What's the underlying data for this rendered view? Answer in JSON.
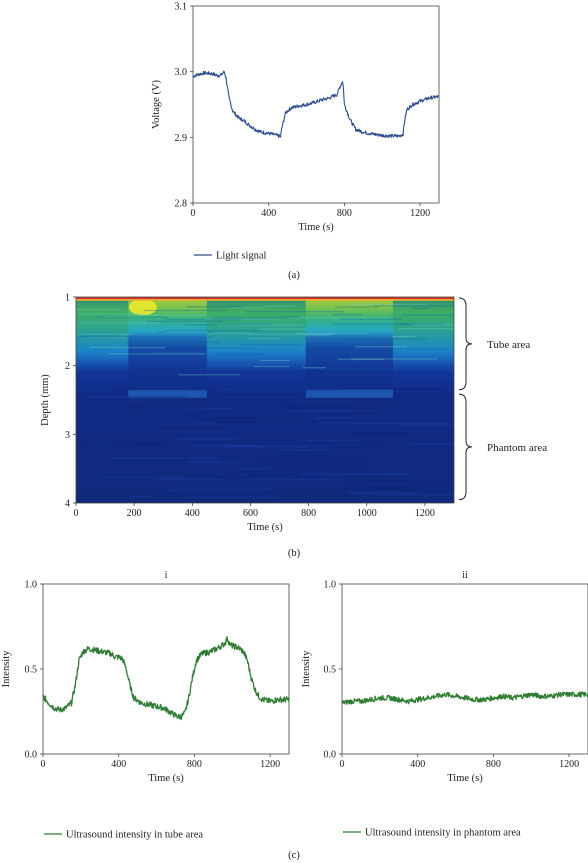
{
  "panels": {
    "a": "(a)",
    "b": "(b)",
    "c": "(c)"
  },
  "chart_data": [
    {
      "id": "a",
      "type": "line",
      "xlabel": "Time (s)",
      "ylabel": "Voltage (V)",
      "xlim": [
        0,
        1300
      ],
      "ylim": [
        2.8,
        3.1
      ],
      "xticks": [
        "0",
        "400",
        "800",
        "1200"
      ],
      "yticks": [
        "2.8",
        "2.9",
        "3.0",
        "3.1"
      ],
      "color": "#2b4d8f",
      "legend": "bottom-left",
      "series": [
        {
          "name": "Light signal",
          "x": [
            0,
            30,
            60,
            100,
            130,
            150,
            165,
            175,
            190,
            210,
            240,
            270,
            300,
            330,
            360,
            400,
            430,
            455,
            462,
            470,
            490,
            520,
            560,
            600,
            640,
            680,
            720,
            760,
            790,
            795,
            800,
            830,
            860,
            900,
            950,
            1000,
            1050,
            1090,
            1110,
            1118,
            1130,
            1160,
            1200,
            1250,
            1300
          ],
          "y": [
            2.993,
            2.996,
            2.998,
            2.997,
            2.994,
            2.995,
            3.0,
            2.99,
            2.96,
            2.94,
            2.93,
            2.925,
            2.918,
            2.912,
            2.908,
            2.906,
            2.904,
            2.902,
            2.9,
            2.915,
            2.938,
            2.945,
            2.948,
            2.95,
            2.953,
            2.957,
            2.96,
            2.965,
            2.986,
            2.975,
            2.95,
            2.927,
            2.912,
            2.908,
            2.905,
            2.903,
            2.902,
            2.902,
            2.905,
            2.925,
            2.942,
            2.95,
            2.955,
            2.96,
            2.962
          ]
        }
      ]
    },
    {
      "id": "b",
      "type": "heatmap",
      "xlabel": "Time (s)",
      "ylabel": "Depth (mm)",
      "xlim": [
        0,
        1300
      ],
      "ylim": [
        1,
        4
      ],
      "xticks": [
        "0",
        "200",
        "400",
        "600",
        "800",
        "1000",
        "1200"
      ],
      "yticks": [
        "1",
        "2",
        "3",
        "4"
      ],
      "regions": [
        {
          "label": "Tube area",
          "depth_range": [
            1.0,
            2.35
          ]
        },
        {
          "label": "Phantom area",
          "depth_range": [
            2.4,
            3.95
          ]
        }
      ]
    },
    {
      "id": "c-i",
      "type": "line",
      "title": "i",
      "xlabel": "Time (s)",
      "ylabel": "Intensity",
      "xlim": [
        0,
        1300
      ],
      "ylim": [
        0.0,
        1.0
      ],
      "xticks": [
        "0",
        "400",
        "800",
        "1200"
      ],
      "yticks": [
        "0.0",
        "0.5",
        "1.0"
      ],
      "color": "#2e7d32",
      "legend": "bottom-left",
      "series": [
        {
          "name": "Ultrasound intensity in tube area",
          "x": [
            0,
            30,
            60,
            90,
            120,
            150,
            170,
            190,
            210,
            240,
            280,
            320,
            360,
            380,
            400,
            420,
            440,
            460,
            480,
            520,
            560,
            600,
            640,
            680,
            710,
            730,
            750,
            770,
            790,
            810,
            840,
            880,
            920,
            960,
            975,
            990,
            1020,
            1040,
            1060,
            1080,
            1100,
            1120,
            1140,
            1160,
            1200,
            1240,
            1300
          ],
          "y": [
            0.34,
            0.3,
            0.27,
            0.26,
            0.27,
            0.3,
            0.4,
            0.55,
            0.6,
            0.62,
            0.61,
            0.6,
            0.59,
            0.57,
            0.57,
            0.56,
            0.5,
            0.4,
            0.33,
            0.3,
            0.29,
            0.28,
            0.27,
            0.24,
            0.22,
            0.22,
            0.24,
            0.33,
            0.45,
            0.55,
            0.59,
            0.6,
            0.62,
            0.65,
            0.68,
            0.64,
            0.63,
            0.62,
            0.6,
            0.55,
            0.45,
            0.38,
            0.34,
            0.32,
            0.31,
            0.32,
            0.32
          ]
        }
      ]
    },
    {
      "id": "c-ii",
      "type": "line",
      "title": "ii",
      "xlabel": "Time (s)",
      "ylabel": "Intensity",
      "xlim": [
        0,
        1300
      ],
      "ylim": [
        0.0,
        1.0
      ],
      "xticks": [
        "0",
        "400",
        "800",
        "1200"
      ],
      "yticks": [
        "0.0",
        "0.5",
        "1.0"
      ],
      "color": "#2e7d32",
      "legend": "bottom-left",
      "series": [
        {
          "name": "Ultrasound intensity in phantom area",
          "x": [
            0,
            50,
            100,
            150,
            200,
            250,
            300,
            350,
            400,
            450,
            500,
            550,
            600,
            650,
            700,
            750,
            800,
            850,
            900,
            950,
            1000,
            1050,
            1100,
            1150,
            1200,
            1250,
            1300
          ],
          "y": [
            0.3,
            0.31,
            0.31,
            0.32,
            0.33,
            0.33,
            0.32,
            0.31,
            0.32,
            0.33,
            0.34,
            0.35,
            0.34,
            0.33,
            0.32,
            0.32,
            0.33,
            0.34,
            0.33,
            0.34,
            0.35,
            0.34,
            0.34,
            0.35,
            0.35,
            0.35,
            0.35
          ]
        }
      ]
    }
  ]
}
